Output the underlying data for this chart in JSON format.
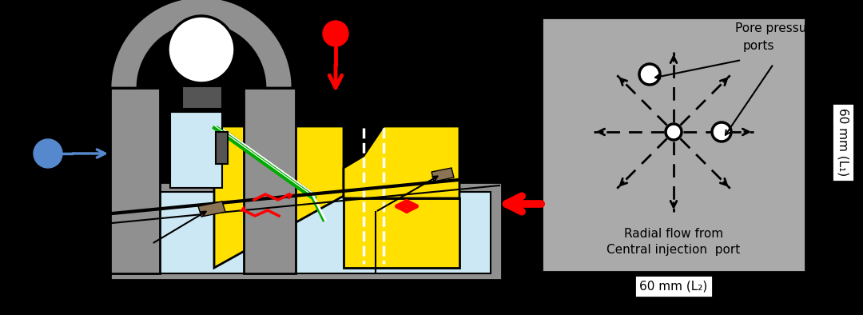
{
  "bg_color": "#000000",
  "gray": "#909090",
  "light_gray": "#aaaaaa",
  "dark_gray": "#555555",
  "yellow": "#FFE000",
  "light_blue": "#cce8f4",
  "blue": "#5588cc",
  "red": "#FF0000",
  "white": "#FFFFFF",
  "green_dark": "#007700",
  "green_light": "#44bb44",
  "black": "#000000",
  "tan": "#8B7355",
  "label_60mm_L1": "60 mm (L₁)",
  "label_60mm_L2": "60 mm (L₂)",
  "label_pore": "Pore pressure\nports",
  "label_radial": "Radial flow from\nCentral injection  port"
}
